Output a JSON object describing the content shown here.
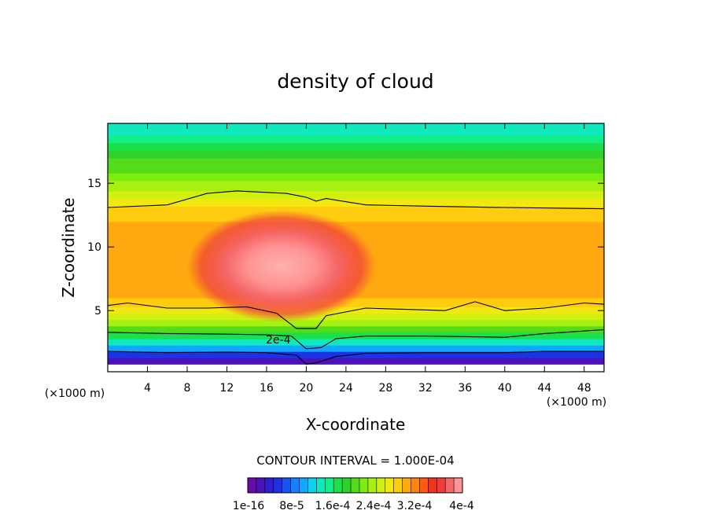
{
  "chart_data": {
    "type": "heatmap",
    "title": "density of cloud",
    "xlabel": "X-coordinate",
    "ylabel": "Z-coordinate",
    "x_unit_left": "(×1000 m)",
    "x_unit_right": "(×1000 m)",
    "xlim": [
      0,
      50
    ],
    "ylim": [
      0.2,
      19.7
    ],
    "x_ticks": [
      "4",
      "8",
      "12",
      "16",
      "20",
      "24",
      "28",
      "32",
      "36",
      "40",
      "44",
      "48"
    ],
    "y_ticks": [
      "5",
      "10",
      "15"
    ],
    "contour_interval_text": "CONTOUR INTERVAL = 1.000E-04",
    "contour_line_label": "2e-4",
    "colorbar_labels": [
      "1e-16",
      "8e-5",
      "1.6e-4",
      "2.4e-4",
      "3.2e-4",
      "4e-4"
    ],
    "colorbar_colors": [
      "#6a0aa8",
      "#4b12b8",
      "#2f1dd2",
      "#1c32e6",
      "#1555f5",
      "#1480ff",
      "#10a8ff",
      "#0fd0ee",
      "#10e8c0",
      "#12ee8c",
      "#1ae04a",
      "#2fd12a",
      "#55dc18",
      "#7ded10",
      "#a8f010",
      "#d2f010",
      "#f0e810",
      "#ffcc10",
      "#ffa810",
      "#ff8412",
      "#ff5a14",
      "#f2361a",
      "#f03c3c",
      "#f56666",
      "#ff9494"
    ],
    "vertical_profile": {
      "z": [
        0.2,
        0.8,
        1.3,
        1.8,
        2.3,
        2.8,
        3.3,
        3.8,
        4.3,
        4.8,
        5.3,
        6,
        7,
        8,
        9,
        10,
        11,
        12,
        12.6,
        13.2,
        13.8,
        14.4,
        15.2,
        15.8,
        16.4,
        17,
        17.6,
        18.2,
        18.8,
        19.4
      ],
      "values": [
        0,
        2e-05,
        6e-05,
        0.0001,
        0.00014,
        0.00018,
        0.000215,
        0.00024,
        0.00026,
        0.00028,
        0.000295,
        0.000305,
        0.00031,
        0.00031,
        0.00031,
        0.00031,
        0.000305,
        0.000295,
        0.000285,
        0.000275,
        0.00026,
        0.000245,
        0.00023,
        0.000215,
        0.0002,
        0.000185,
        0.00017,
        0.000155,
        0.000145,
        0.000135
      ]
    },
    "core": {
      "x": 17.5,
      "z": 8.5,
      "peak": 0.0004
    },
    "contour_lines": [
      {
        "level": "1e-4",
        "points": [
          [
            0,
            1.8
          ],
          [
            6,
            1.7
          ],
          [
            12,
            1.75
          ],
          [
            16,
            1.7
          ],
          [
            19,
            1.5
          ],
          [
            20,
            0.8
          ],
          [
            21,
            0.9
          ],
          [
            23,
            1.4
          ],
          [
            26,
            1.65
          ],
          [
            32,
            1.7
          ],
          [
            40,
            1.7
          ],
          [
            44,
            1.8
          ],
          [
            50,
            1.8
          ]
        ]
      },
      {
        "level": "2e-4",
        "points": [
          [
            0,
            3.3
          ],
          [
            6,
            3.2
          ],
          [
            12,
            3.15
          ],
          [
            16,
            3.1
          ],
          [
            18.5,
            3.0
          ],
          [
            20,
            2.0
          ],
          [
            21.5,
            2.1
          ],
          [
            23,
            2.8
          ],
          [
            26,
            3.0
          ],
          [
            32,
            3.0
          ],
          [
            40,
            2.9
          ],
          [
            44,
            3.2
          ],
          [
            46,
            3.3
          ],
          [
            50,
            3.5
          ]
        ]
      },
      {
        "level": "3e-4",
        "points": [
          [
            0,
            5.4
          ],
          [
            2,
            5.6
          ],
          [
            6,
            5.2
          ],
          [
            10,
            5.2
          ],
          [
            14,
            5.3
          ],
          [
            17,
            4.8
          ],
          [
            19,
            3.6
          ],
          [
            21,
            3.6
          ],
          [
            22,
            4.6
          ],
          [
            26,
            5.2
          ],
          [
            30,
            5.1
          ],
          [
            34,
            5.0
          ],
          [
            37,
            5.7
          ],
          [
            40,
            5.0
          ],
          [
            44,
            5.2
          ],
          [
            48,
            5.6
          ],
          [
            50,
            5.5
          ]
        ]
      },
      {
        "level": "2e-4 (upper)",
        "points": [
          [
            0,
            13.1
          ],
          [
            6,
            13.3
          ],
          [
            10,
            14.2
          ],
          [
            13,
            14.4
          ],
          [
            18,
            14.2
          ],
          [
            20,
            13.9
          ],
          [
            21,
            13.6
          ],
          [
            22,
            13.8
          ],
          [
            26,
            13.3
          ],
          [
            32,
            13.2
          ],
          [
            40,
            13.1
          ],
          [
            50,
            13.0
          ]
        ]
      }
    ]
  }
}
